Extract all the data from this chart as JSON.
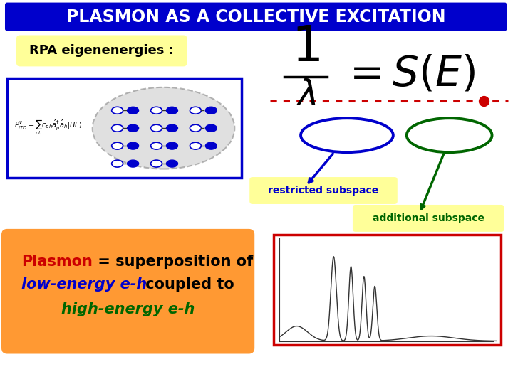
{
  "bg_color": "#ffffff",
  "title_text": "PLASMON AS A COLLECTIVE EXCITATION",
  "title_bg": "#0000cc",
  "title_fg": "#ffffff",
  "rpa_text": "RPA eigenenergies :",
  "rpa_bg": "#ffff99",
  "dotted_line_color": "#cc0000",
  "dot_color": "#cc0000",
  "blue_ellipse_color": "#0000cc",
  "green_ellipse_color": "#006600",
  "restricted_label": "restricted subspace",
  "restricted_label_bg": "#ffff99",
  "restricted_label_color": "#0000cc",
  "additional_label": "additional subspace",
  "additional_label_bg": "#ffff99",
  "additional_label_color": "#006600",
  "plasmon_box_bg": "#ff9933",
  "plasmon_text1": "Plasmon",
  "plasmon_text1_color": "#cc0000",
  "plasmon_text2": " = superposition of",
  "plasmon_text2_color": "#000000",
  "plasmon_text3": "low-energy e-h",
  "plasmon_text3_color": "#0000cc",
  "plasmon_text4": " coupled to",
  "plasmon_text4_color": "#000000",
  "plasmon_text5": "high-energy e-h",
  "plasmon_text5_color": "#006600",
  "formula_box_color": "#0000cc",
  "graph_box_color": "#cc0000"
}
